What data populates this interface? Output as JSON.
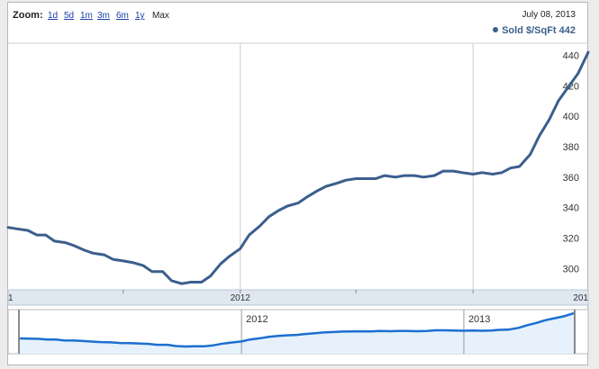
{
  "toolbar": {
    "zoom_label": "Zoom:",
    "ranges": [
      "1d",
      "5d",
      "1m",
      "3m",
      "6m",
      "1y"
    ],
    "active_range": "Max",
    "date": "July 08, 2013",
    "legend": "Sold $/SqFt 442"
  },
  "colors": {
    "line": "#3b5f8d",
    "nav_line": "#1c6fd0",
    "nav_fill": "#e6f1fc",
    "axis_band": "#dfe7f1"
  },
  "chart_data": {
    "type": "line",
    "title": "",
    "xlabel": "",
    "ylabel": "",
    "ylim": [
      286,
      448
    ],
    "yticks": [
      300,
      320,
      340,
      360,
      380,
      400,
      420,
      440
    ],
    "grid": true,
    "legend_position": "top-right",
    "x_axis_labels": [
      {
        "label": "1",
        "at": "2011-01"
      },
      {
        "label": "2012",
        "at": "2012-01"
      },
      {
        "label": "201",
        "at": "2013-07"
      }
    ],
    "navigator_labels": [
      {
        "label": "2012",
        "at": "2012-01"
      },
      {
        "label": "2013",
        "at": "2013-01"
      }
    ],
    "series": [
      {
        "name": "Sold $/SqFt",
        "x": [
          "2011-01",
          "2011-01-15",
          "2011-02",
          "2011-02-15",
          "2011-03",
          "2011-03-15",
          "2011-04",
          "2011-04-15",
          "2011-05",
          "2011-05-15",
          "2011-06",
          "2011-06-15",
          "2011-07",
          "2011-07-15",
          "2011-08",
          "2011-08-15",
          "2011-09",
          "2011-09-15",
          "2011-10",
          "2011-10-15",
          "2011-11",
          "2011-11-15",
          "2011-12",
          "2011-12-15",
          "2012-01",
          "2012-01-15",
          "2012-02",
          "2012-02-15",
          "2012-03",
          "2012-03-15",
          "2012-04",
          "2012-04-15",
          "2012-05",
          "2012-05-15",
          "2012-06",
          "2012-06-15",
          "2012-07",
          "2012-07-15",
          "2012-08",
          "2012-08-15",
          "2012-09",
          "2012-09-15",
          "2012-10",
          "2012-10-15",
          "2012-11",
          "2012-11-15",
          "2012-12",
          "2012-12-15",
          "2013-01",
          "2013-01-15",
          "2013-02",
          "2013-02-15",
          "2013-03",
          "2013-03-15",
          "2013-04",
          "2013-04-15",
          "2013-05",
          "2013-05-15",
          "2013-06",
          "2013-06-15",
          "2013-07"
        ],
        "values": [
          327,
          326,
          325,
          322,
          322,
          318,
          317,
          315,
          312,
          310,
          309,
          306,
          305,
          304,
          302,
          298,
          298,
          292,
          290,
          291,
          291,
          295,
          303,
          308,
          313,
          322,
          328,
          334,
          338,
          341,
          343,
          347,
          351,
          354,
          356,
          358,
          359,
          359,
          359,
          361,
          360,
          361,
          361,
          360,
          361,
          364,
          364,
          363,
          362,
          363,
          362,
          363,
          366,
          367,
          375,
          387,
          398,
          410,
          420,
          428,
          442
        ]
      }
    ]
  }
}
